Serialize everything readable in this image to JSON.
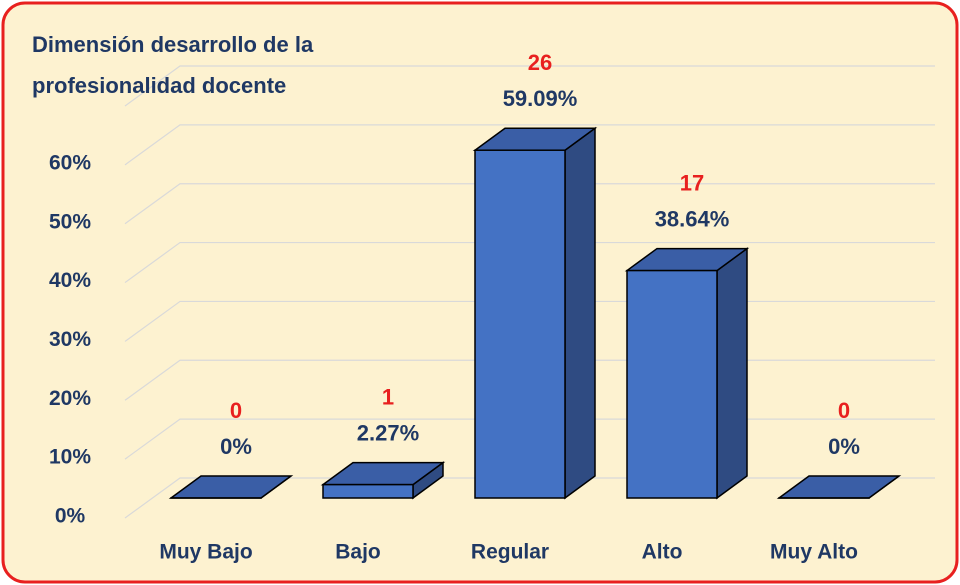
{
  "chart_data": {
    "type": "bar3d",
    "title": "Dimensión desarrollo de la profesionalidad docente",
    "categories": [
      "Muy Bajo",
      "Bajo",
      "Regular",
      "Alto",
      "Muy Alto"
    ],
    "values": [
      0,
      2.27,
      59.09,
      38.64,
      0
    ],
    "value_labels": [
      "0%",
      "2.27%",
      "59.09%",
      "38.64%",
      "0%"
    ],
    "counts": [
      0,
      1,
      26,
      17,
      0
    ],
    "color": "#4472c4",
    "ylim": [
      0,
      70
    ],
    "yticks": [
      {
        "value": 0,
        "label": "0%"
      },
      {
        "value": 10,
        "label": "10%"
      },
      {
        "value": 20,
        "label": "20%"
      },
      {
        "value": 30,
        "label": "30%"
      },
      {
        "value": 40,
        "label": "40%"
      },
      {
        "value": 50,
        "label": "50%"
      },
      {
        "value": 60,
        "label": "60%"
      }
    ],
    "grid": true
  }
}
